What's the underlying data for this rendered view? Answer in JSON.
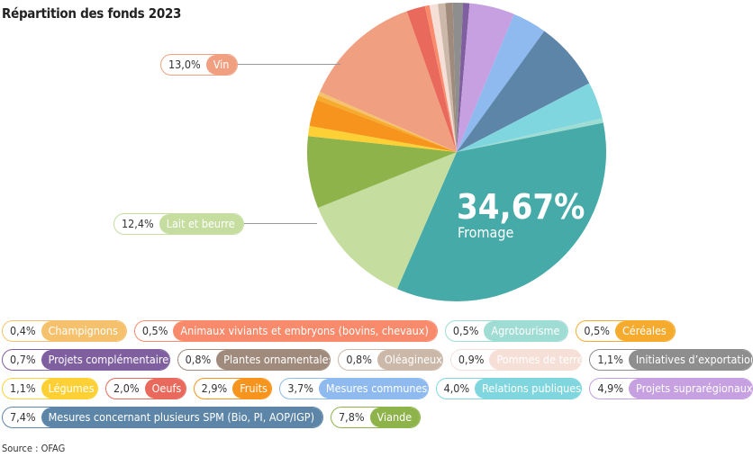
{
  "title": "Répartition des fonds 2023",
  "source": "Source : OFAG",
  "chart_data": {
    "type": "pie",
    "title": "Répartition des fonds 2023",
    "unit": "%",
    "slices": [
      {
        "label": "Initiatives d’exportation",
        "value": 1.1,
        "display": "1,1%",
        "color": "#8e8e8e"
      },
      {
        "label": "Projets complémentaires",
        "value": 0.7,
        "display": "0,7%",
        "color": "#7f5fa0"
      },
      {
        "label": "Projets suprarégionaux",
        "value": 4.9,
        "display": "4,9%",
        "color": "#c6a0e0"
      },
      {
        "label": "Mesures communes",
        "value": 3.7,
        "display": "3,7%",
        "color": "#8fbaf0"
      },
      {
        "label": "Mesures concernant plusieurs SPM (Bio, PI, AOP/IGP)",
        "value": 7.4,
        "display": "7,4%",
        "color": "#5c85a8"
      },
      {
        "label": "Relations publiques",
        "value": 4.0,
        "display": "4,0%",
        "color": "#7fd6df"
      },
      {
        "label": "Agrotourisme",
        "value": 0.5,
        "display": "0,5%",
        "color": "#9fdcd4"
      },
      {
        "label": "Fromage",
        "value": 34.67,
        "display": "34,67%",
        "color": "#45aaa8"
      },
      {
        "label": "Lait et beurre",
        "value": 12.4,
        "display": "12,4%",
        "color": "#c5dea0"
      },
      {
        "label": "Viande",
        "value": 7.8,
        "display": "7,8%",
        "color": "#8db34a"
      },
      {
        "label": "Légumes",
        "value": 1.1,
        "display": "1,1%",
        "color": "#fdd135"
      },
      {
        "label": "Fruits",
        "value": 2.9,
        "display": "2,9%",
        "color": "#f7941d"
      },
      {
        "label": "Céréales",
        "value": 0.5,
        "display": "0,5%",
        "color": "#f6ab2e"
      },
      {
        "label": "Champignons",
        "value": 0.4,
        "display": "0,4%",
        "color": "#f5c16c"
      },
      {
        "label": "Vin",
        "value": 13.0,
        "display": "13,0%",
        "color": "#f0a080"
      },
      {
        "label": "Oeufs",
        "value": 2.0,
        "display": "2,0%",
        "color": "#e9695c"
      },
      {
        "label": "Animaux viviants et embryons (bovins, chevaux)",
        "value": 0.5,
        "display": "0,5%",
        "color": "#f98a6b"
      },
      {
        "label": "Pommes de terre",
        "value": 0.9,
        "display": "0,9%",
        "color": "#f5dfd7"
      },
      {
        "label": "Oléagineux",
        "value": 0.8,
        "display": "0,8%",
        "color": "#cbb8a9"
      },
      {
        "label": "Plantes ornamentales",
        "value": 0.8,
        "display": "0,8%",
        "color": "#a08a7b"
      }
    ],
    "highlight": {
      "value": "34,67%",
      "label": "Fromage"
    },
    "callouts": [
      {
        "pct": "13,0%",
        "label": "Vin",
        "color": "#f0a080"
      },
      {
        "pct": "12,4%",
        "label": "Lait et beurre",
        "color": "#c5dea0"
      }
    ],
    "legend_rows": [
      [
        {
          "pct": "0,4%",
          "label": "Champignons",
          "color": "#f5c16c"
        },
        {
          "pct": "0,5%",
          "label": "Animaux viviants et embryons (bovins, chevaux)",
          "color": "#f98a6b"
        },
        {
          "pct": "0,5%",
          "label": "Agrotourisme",
          "color": "#9fdcd4"
        },
        {
          "pct": "0,5%",
          "label": "Céréales",
          "color": "#f6ab2e"
        }
      ],
      [
        {
          "pct": "0,7%",
          "label": "Projets complémentaires",
          "color": "#7f5fa0"
        },
        {
          "pct": "0,8%",
          "label": "Plantes ornamentales",
          "color": "#a08a7b"
        },
        {
          "pct": "0,8%",
          "label": "Oléagineux",
          "color": "#cbb8a9"
        },
        {
          "pct": "0,9%",
          "label": "Pommes de terre",
          "color": "#f5dfd7"
        },
        {
          "pct": "1,1%",
          "label": "Initiatives d’exportation",
          "color": "#8e8e8e"
        }
      ],
      [
        {
          "pct": "1,1%",
          "label": "Légumes",
          "color": "#fdd135"
        },
        {
          "pct": "2,0%",
          "label": "Oeufs",
          "color": "#e9695c"
        },
        {
          "pct": "2,9%",
          "label": "Fruits",
          "color": "#f7941d"
        },
        {
          "pct": "3,7%",
          "label": "Mesures communes",
          "color": "#8fbaf0"
        },
        {
          "pct": "4,0%",
          "label": "Relations publiques",
          "color": "#7fd6df"
        },
        {
          "pct": "4,9%",
          "label": "Projets suprarégionaux",
          "color": "#c6a0e0"
        }
      ],
      [
        {
          "pct": "7,4%",
          "label": "Mesures concernant plusieurs SPM (Bio, PI, AOP/IGP)",
          "color": "#5c85a8"
        },
        {
          "pct": "7,8%",
          "label": "Viande",
          "color": "#8db34a"
        }
      ]
    ]
  }
}
